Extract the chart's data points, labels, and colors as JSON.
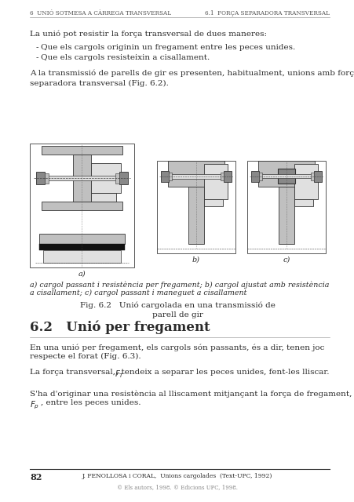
{
  "background_color": "#ffffff",
  "page_width": 4.52,
  "page_height": 6.4,
  "dpi": 100,
  "header_left": "6  UNIÓ SOTMESA A CÀRREGA TRANSVERSAL",
  "header_right": "6.1  FORÇA SEPARADORA TRANSVERSAL",
  "footer_page_num": "82",
  "footer_center": "J. FENOLLOSA i CORAL,  Unions cargolades  (Text-UPC, 1992)",
  "footer_copyright": "© Els autors, 1998. © Edicions UPC, 1998.",
  "fig_label_a": "a)",
  "fig_label_b": "b)",
  "fig_label_c": "c)",
  "fig_caption_line1": "a) cargol passant i resistència per fregament; b) cargol ajustat amb resistència",
  "fig_caption_line2": "a cisallament; c) cargol passant i maneguet a cisallament",
  "fig_title_line1": "Fig. 6.2   Unió cargolada en una transmissió de",
  "fig_title_line2": "parell de gir",
  "section_title": "6.2   Unió per fregament",
  "text_color": "#2a2a2a",
  "header_color": "#555555",
  "gray1": "#c0c0c0",
  "gray2": "#888888",
  "gray3": "#e0e0e0",
  "gray4": "#d0d0d0",
  "black_band": "#1a1a1a"
}
